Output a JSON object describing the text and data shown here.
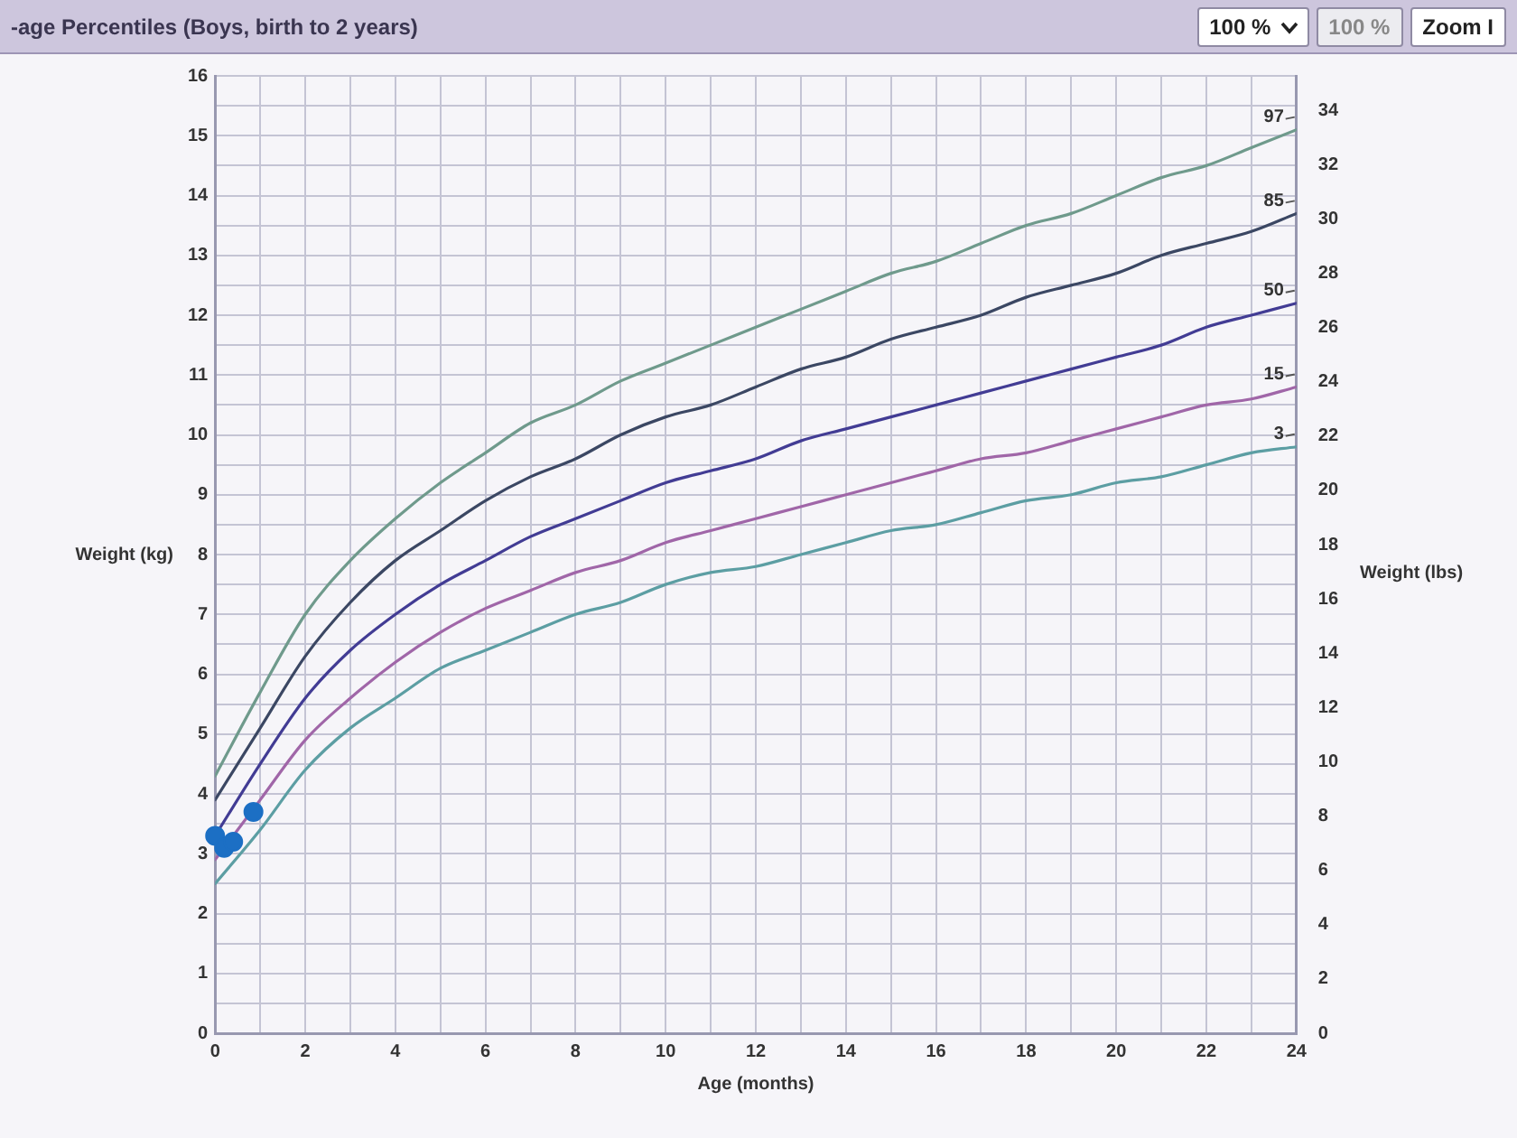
{
  "chart_data": {
    "type": "line",
    "title": "-age Percentiles (Boys, birth to 2 years)",
    "xlabel": "Age (months)",
    "ylabel": "Weight (kg)",
    "y2label": "Weight (lbs)",
    "annotations": [
      "100 %",
      "100 %",
      "Zoom I"
    ],
    "x": [
      0,
      1,
      2,
      3,
      4,
      5,
      6,
      7,
      8,
      9,
      10,
      11,
      12,
      13,
      14,
      15,
      16,
      17,
      18,
      19,
      20,
      21,
      22,
      23,
      24
    ],
    "xlim": [
      0,
      24
    ],
    "xticks": [
      0,
      {
        "value": 1,
        "label": null
      },
      2,
      {
        "value": 3,
        "label": null
      },
      4,
      {
        "value": 5,
        "label": null
      },
      6,
      {
        "value": 7,
        "label": null
      },
      8,
      {
        "value": 9,
        "label": null
      },
      10,
      {
        "value": 11,
        "label": null
      },
      12,
      {
        "value": 13,
        "label": null
      },
      14,
      {
        "value": 15,
        "label": null
      },
      16,
      {
        "value": 17,
        "label": null
      },
      18,
      {
        "value": 19,
        "label": null
      },
      20,
      {
        "value": 21,
        "label": null
      },
      22,
      {
        "value": 23,
        "label": null
      },
      24
    ],
    "ylim": [
      0,
      16
    ],
    "yticks": [
      0,
      {
        "value": 0.5,
        "label": null
      },
      1,
      {
        "value": 1.5,
        "label": null
      },
      2,
      {
        "value": 2.5,
        "label": null
      },
      3,
      {
        "value": 3.5,
        "label": null
      },
      4,
      {
        "value": 4.5,
        "label": null
      },
      5,
      {
        "value": 5.5,
        "label": null
      },
      6,
      {
        "value": 6.5,
        "label": null
      },
      7,
      {
        "value": 7.5,
        "label": null
      },
      8,
      {
        "value": 8.5,
        "label": null
      },
      9,
      {
        "value": 9.5,
        "label": null
      },
      10,
      {
        "value": 10.5,
        "label": null
      },
      11,
      {
        "value": 11.5,
        "label": null
      },
      12,
      {
        "value": 12.5,
        "label": null
      },
      13,
      {
        "value": 13.5,
        "label": null
      },
      14,
      {
        "value": 14.5,
        "label": null
      },
      15,
      {
        "value": 15.5,
        "label": null
      },
      16
    ],
    "y2lim": [
      0,
      35.27
    ],
    "y2ticks": [
      0,
      2,
      4,
      6,
      8,
      10,
      12,
      14,
      16,
      18,
      20,
      22,
      24,
      26,
      28,
      30,
      32,
      34
    ],
    "grid": true,
    "series": [
      {
        "name": "97",
        "color": "#6f9a8c",
        "values": [
          4.3,
          5.7,
          7.0,
          7.9,
          8.6,
          9.2,
          9.7,
          10.2,
          10.5,
          10.9,
          11.2,
          11.5,
          11.8,
          12.1,
          12.4,
          12.7,
          12.9,
          13.2,
          13.5,
          13.7,
          14.0,
          14.3,
          14.5,
          14.8,
          15.1
        ]
      },
      {
        "name": "85",
        "color": "#3b4763",
        "values": [
          3.9,
          5.1,
          6.3,
          7.2,
          7.9,
          8.4,
          8.9,
          9.3,
          9.6,
          10.0,
          10.3,
          10.5,
          10.8,
          11.1,
          11.3,
          11.6,
          11.8,
          12.0,
          12.3,
          12.5,
          12.7,
          13.0,
          13.2,
          13.4,
          13.7
        ]
      },
      {
        "name": "50",
        "color": "#423c94",
        "values": [
          3.3,
          4.5,
          5.6,
          6.4,
          7.0,
          7.5,
          7.9,
          8.3,
          8.6,
          8.9,
          9.2,
          9.4,
          9.6,
          9.9,
          10.1,
          10.3,
          10.5,
          10.7,
          10.9,
          11.1,
          11.3,
          11.5,
          11.8,
          12.0,
          12.2
        ]
      },
      {
        "name": "15",
        "color": "#a066a8",
        "values": [
          2.9,
          3.9,
          4.9,
          5.6,
          6.2,
          6.7,
          7.1,
          7.4,
          7.7,
          7.9,
          8.2,
          8.4,
          8.6,
          8.8,
          9.0,
          9.2,
          9.4,
          9.6,
          9.7,
          9.9,
          10.1,
          10.3,
          10.5,
          10.6,
          10.8
        ]
      },
      {
        "name": "3",
        "color": "#5c9ea3",
        "values": [
          2.5,
          3.4,
          4.4,
          5.1,
          5.6,
          6.1,
          6.4,
          6.7,
          7.0,
          7.2,
          7.5,
          7.7,
          7.8,
          8.0,
          8.2,
          8.4,
          8.5,
          8.7,
          8.9,
          9.0,
          9.2,
          9.3,
          9.5,
          9.7,
          9.8
        ]
      },
      {
        "type": "scatter",
        "color": "#1c6fc4",
        "marker": "circle",
        "x": [
          0,
          0.2,
          0.4,
          0.85
        ],
        "values": [
          3.3,
          3.1,
          3.2,
          3.7
        ]
      }
    ]
  }
}
